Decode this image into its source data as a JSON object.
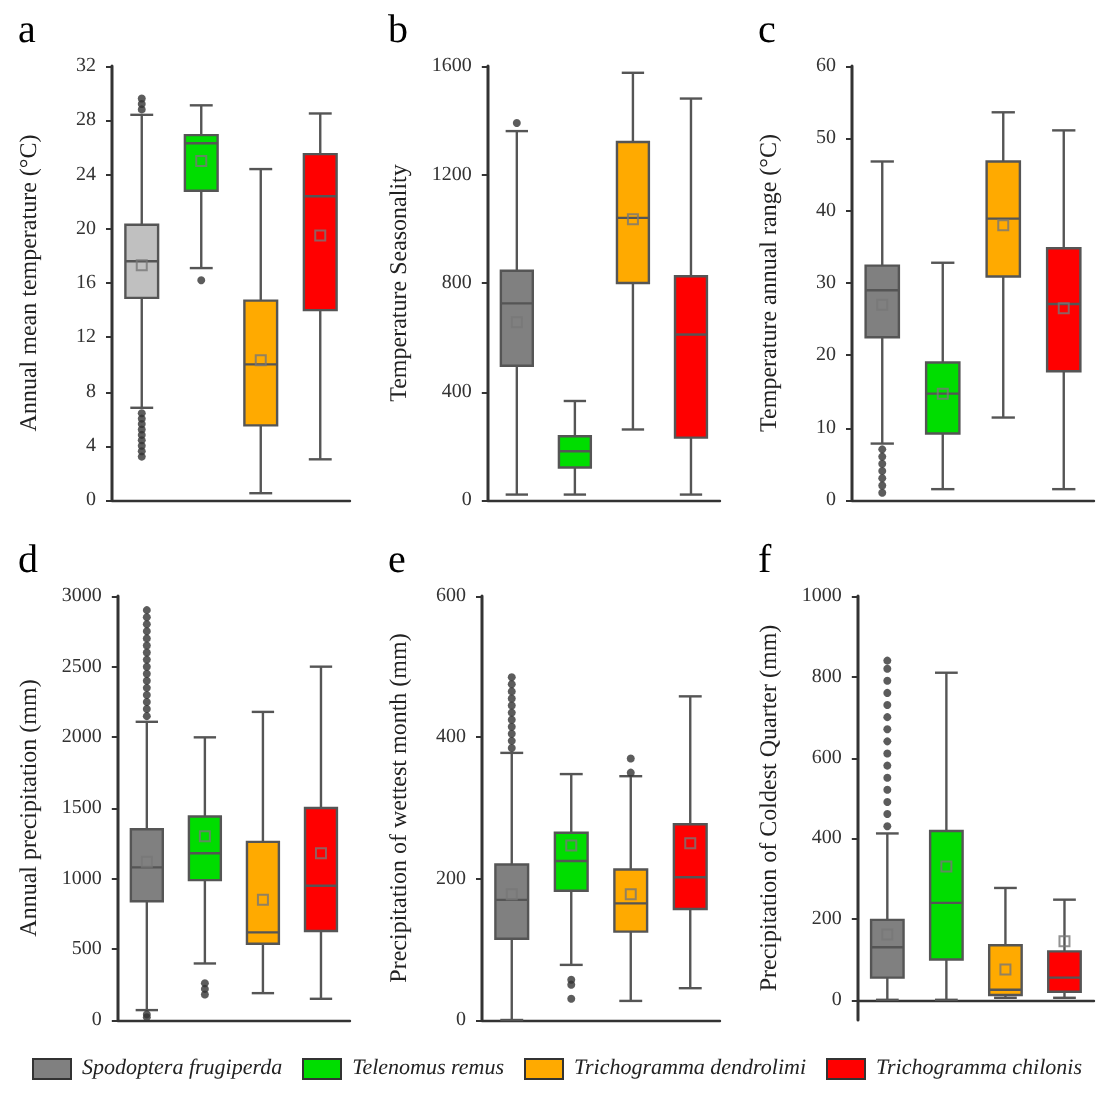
{
  "chart_data": [
    {
      "type": "box",
      "title": "a",
      "ylabel": "Annual mean temperature (°C)",
      "categories": [
        null,
        null,
        null,
        null
      ],
      "colors": [
        "#c0c0c0",
        "#00dd00",
        "#ffaa00",
        "#ff0000"
      ],
      "ylim": [
        0,
        32
      ],
      "yticks": [
        0,
        4,
        8,
        12,
        16,
        20,
        24,
        28,
        32
      ],
      "tick_labels": "y",
      "legend": false,
      "boxes": [
        {
          "low": 6.8,
          "q1": 14.9,
          "median": 17.6,
          "q3": 20.3,
          "high": 28.4,
          "mean": 17.3,
          "outliers": [
            3.2,
            3.6,
            4,
            4.4,
            4.8,
            5.2,
            5.6,
            6,
            6.4,
            28.8,
            29.2,
            29.6
          ]
        },
        {
          "low": 17.1,
          "q1": 22.8,
          "median": 26.3,
          "q3": 26.9,
          "high": 29.1,
          "mean": 25,
          "outliers": [
            16.2
          ]
        },
        {
          "low": 0.5,
          "q1": 5.5,
          "median": 10,
          "q3": 14.7,
          "high": 24.4,
          "mean": 10.3
        },
        {
          "low": 3,
          "q1": 14,
          "median": 22.4,
          "q3": 25.5,
          "high": 28.5,
          "mean": 19.5
        }
      ]
    },
    {
      "type": "box",
      "title": "b",
      "ylabel": "Temperature Seasonality",
      "categories": [
        null,
        null,
        null,
        null
      ],
      "colors": [
        "#808080",
        "#00dd00",
        "#ffaa00",
        "#ff0000"
      ],
      "ylim": [
        0,
        1600
      ],
      "yticks": [
        0,
        400,
        800,
        1200,
        1600
      ],
      "tick_labels": "y",
      "legend": false,
      "boxes": [
        {
          "low": 20,
          "q1": 495,
          "median": 725,
          "q3": 845,
          "high": 1360,
          "mean": 655,
          "outliers": [
            1390
          ]
        },
        {
          "low": 20,
          "q1": 120,
          "median": 180,
          "q3": 235,
          "high": 365
        },
        {
          "low": 260,
          "q1": 800,
          "median": 1040,
          "q3": 1320,
          "high": 1575,
          "mean": 1035
        },
        {
          "low": 20,
          "q1": 230,
          "median": 610,
          "q3": 825,
          "high": 1480
        }
      ]
    },
    {
      "type": "box",
      "title": "c",
      "ylabel": "Temperature annual range (°C)",
      "categories": [
        null,
        null,
        null,
        null
      ],
      "colors": [
        "#808080",
        "#00dd00",
        "#ffaa00",
        "#ff0000"
      ],
      "ylim": [
        0,
        60
      ],
      "yticks": [
        0,
        10,
        20,
        30,
        40,
        50,
        60
      ],
      "tick_labels": "y",
      "legend": false,
      "boxes": [
        {
          "low": 7.8,
          "q1": 22.5,
          "median": 29,
          "q3": 32.4,
          "high": 46.8,
          "mean": 27,
          "outliers": [
            1,
            2,
            3,
            4,
            5,
            6,
            7
          ]
        },
        {
          "low": 1.5,
          "q1": 9.2,
          "median": 14.7,
          "q3": 19,
          "high": 32.8,
          "mean": 14.7
        },
        {
          "low": 11.4,
          "q1": 30.9,
          "median": 38.9,
          "q3": 46.8,
          "high": 53.6,
          "mean": 38
        },
        {
          "low": 1.5,
          "q1": 17.8,
          "median": 27.1,
          "q3": 34.8,
          "high": 51.1,
          "mean": 26.5
        }
      ]
    },
    {
      "type": "box",
      "title": "d",
      "ylabel": "Annual precipitation (mm)",
      "categories": [
        null,
        null,
        null,
        null
      ],
      "colors": [
        "#808080",
        "#00dd00",
        "#ffaa00",
        "#ff0000"
      ],
      "ylim": [
        0,
        3000
      ],
      "yticks": [
        0,
        500,
        1000,
        1500,
        2000,
        2500,
        3000
      ],
      "tick_labels": "y",
      "legend": false,
      "boxes": [
        {
          "low": 70,
          "q1": 840,
          "median": 1080,
          "q3": 1350,
          "high": 2110,
          "mean": 1120,
          "outliers": [
            20,
            40,
            2150,
            2200,
            2250,
            2300,
            2350,
            2400,
            2450,
            2500,
            2550,
            2600,
            2650,
            2700,
            2750,
            2800,
            2850,
            2900
          ]
        },
        {
          "low": 400,
          "q1": 990,
          "median": 1180,
          "q3": 1440,
          "high": 2000,
          "mean": 1300,
          "outliers": [
            180,
            220,
            260
          ]
        },
        {
          "low": 190,
          "q1": 540,
          "median": 620,
          "q3": 1260,
          "high": 2180,
          "mean": 850
        },
        {
          "low": 150,
          "q1": 630,
          "median": 950,
          "q3": 1500,
          "high": 2500,
          "mean": 1180
        }
      ]
    },
    {
      "type": "box",
      "title": "e",
      "ylabel": "Precipitation of wettest month (mm)",
      "categories": [
        null,
        null,
        null,
        null
      ],
      "colors": [
        "#808080",
        "#00dd00",
        "#ffaa00",
        "#ff0000"
      ],
      "ylim": [
        0,
        600
      ],
      "yticks": [
        0,
        200,
        400,
        600
      ],
      "tick_labels": "y",
      "legend": false,
      "boxes": [
        {
          "low": 0,
          "q1": 115,
          "median": 170,
          "q3": 220,
          "high": 378,
          "mean": 178,
          "outliers": [
            385,
            395,
            405,
            415,
            425,
            435,
            445,
            455,
            465,
            475,
            485
          ]
        },
        {
          "low": 78,
          "q1": 183,
          "median": 225,
          "q3": 265,
          "high": 348,
          "mean": 247,
          "outliers": [
            30,
            50,
            57
          ]
        },
        {
          "low": 27,
          "q1": 125,
          "median": 165,
          "q3": 213,
          "high": 345,
          "mean": 178,
          "outliers": [
            350,
            370
          ]
        },
        {
          "low": 45,
          "q1": 157,
          "median": 202,
          "q3": 277,
          "high": 458,
          "mean": 250
        }
      ]
    },
    {
      "type": "box",
      "title": "f",
      "ylabel": "Precipitation of Coldest Quarter (mm)",
      "categories": [
        null,
        null,
        null,
        null
      ],
      "ylim": [
        -50,
        1000
      ],
      "yticks": [
        0,
        200,
        400,
        600,
        800,
        1000
      ],
      "tick_labels": "y",
      "legend": "bottom",
      "series": [
        {
          "name": "Spodoptera frugiperda",
          "color": "#808080",
          "boxes": [
            {
              "low": 0,
              "q1": 55,
              "median": 130,
              "q3": 198,
              "high": 412,
              "mean": 162,
              "outliers": [
                430,
                460,
                490,
                520,
                550,
                580,
                610,
                640,
                670,
                700,
                730,
                760,
                790,
                820,
                840
              ]
            },
            null,
            null,
            null
          ]
        },
        {
          "name": "Telenomus remus",
          "color": "#00dd00",
          "boxes": [
            null,
            {
              "low": 0,
              "q1": 100,
              "median": 240,
              "q3": 418,
              "high": 810,
              "mean": 330
            },
            null,
            null
          ]
        },
        {
          "name": "Trichogramma dendrolimi",
          "color": "#ffaa00",
          "boxes": [
            null,
            null,
            {
              "low": 5,
              "q1": 12,
              "median": 25,
              "q3": 135,
              "high": 277,
              "mean": 75
            },
            null
          ]
        },
        {
          "name": "Trichogramma chilonis",
          "color": "#ff0000",
          "boxes": [
            null,
            null,
            null,
            {
              "low": 5,
              "q1": 20,
              "median": 55,
              "q3": 120,
              "high": 248,
              "mean": 145
            }
          ]
        }
      ]
    }
  ]
}
